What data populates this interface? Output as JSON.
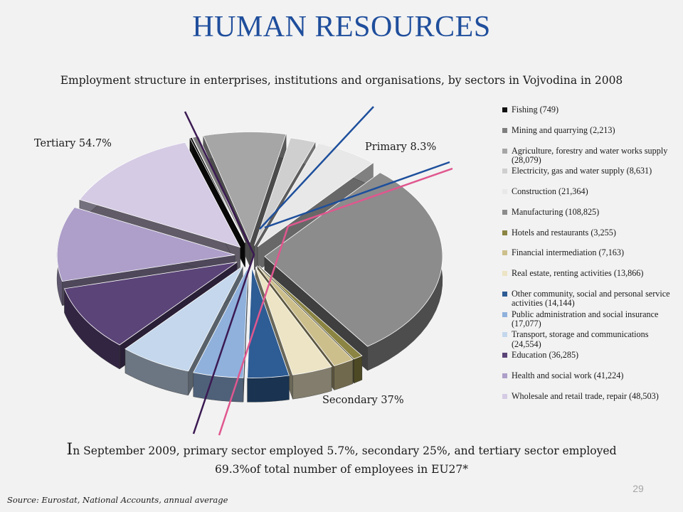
{
  "slide": {
    "title": "HUMAN RESOURCES",
    "subtitle": "Employment  structure in enterprises, institutions and organisations, by sectors in Vojvodina in 2008",
    "footnote_cap": "I",
    "footnote_line1": "n September 2009, primary sector employed  5.7%, secondary 25%, and tertiary sector employed",
    "footnote_line2": "69.3%of total number of employees in EU27*",
    "page_number": "29",
    "source": "Source: Eurostat, National Accounts, annual average"
  },
  "chart_data": {
    "type": "pie",
    "style": "3d-exploded",
    "legend_position": "right",
    "slices": [
      {
        "label": "Fishing (749)",
        "value": 749,
        "color": "#111111"
      },
      {
        "label": "Mining and quarrying (2,213)",
        "value": 2213,
        "color": "#7f7f7f"
      },
      {
        "label": "Agriculture, forestry and water works supply (28,079)",
        "value": 28079,
        "color": "#a6a6a6"
      },
      {
        "label": "Electricity, gas and water supply (8,631)",
        "value": 8631,
        "color": "#cfcfcf"
      },
      {
        "label": "Construction (21,364)",
        "value": 21364,
        "color": "#e8e8e8"
      },
      {
        "label": "Manufacturing (108,825)",
        "value": 108825,
        "color": "#8c8c8c"
      },
      {
        "label": "Hotels and restaurants (3,255)",
        "value": 3255,
        "color": "#8b8442"
      },
      {
        "label": "Financial intermediation (7,163)",
        "value": 7163,
        "color": "#cdbf8c"
      },
      {
        "label": "Real estate, renting activities (13,866)",
        "value": 13866,
        "color": "#ece4c4"
      },
      {
        "label": "Other community, social and personal service activities (14,144)",
        "value": 14144,
        "color": "#2e5c94"
      },
      {
        "label": "Public administration and social insurance (17,077)",
        "value": 17077,
        "color": "#8fb1dc"
      },
      {
        "label": "Transport, storage and communications (24,554)",
        "value": 24554,
        "color": "#c4d7ec"
      },
      {
        "label": "Education (36,285)",
        "value": 36285,
        "color": "#5b4478"
      },
      {
        "label": "Health and social work (41,224)",
        "value": 41224,
        "color": "#ad9fc9"
      },
      {
        "label": "Wholesale and retail trade, repair (48,503)",
        "value": 48503,
        "color": "#d5cbe4"
      }
    ],
    "sector_labels": [
      {
        "name": "Primary 8.3%",
        "value": 8.3
      },
      {
        "name": "Secondary 37%",
        "value": 37
      },
      {
        "name": "Tertiary 54.7%",
        "value": 54.7
      }
    ],
    "divider_colors": {
      "tertiary": "#3b1a52",
      "primary": "#1d4f9c",
      "secondary": "#e0578f"
    }
  }
}
